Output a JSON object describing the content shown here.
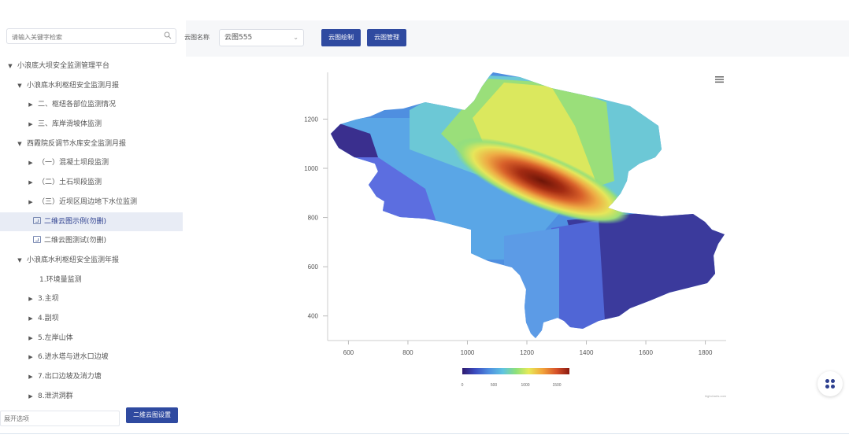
{
  "sidebar": {
    "search_placeholder": "请输入关键字检索",
    "tree": [
      {
        "label": "小浪底大坝安全监测管理平台",
        "indent": 0,
        "type": "open"
      },
      {
        "label": "小浪底水利枢纽安全监测月报",
        "indent": 1,
        "type": "open"
      },
      {
        "label": "二、枢纽各部位监测情况",
        "indent": 2,
        "type": "closed"
      },
      {
        "label": "三、库岸滑坡体监测",
        "indent": 2,
        "type": "closed"
      },
      {
        "label": "西霞院反调节水库安全监测月报",
        "indent": 1,
        "type": "open"
      },
      {
        "label": "（一）混凝土坝段监测",
        "indent": 2,
        "type": "closed"
      },
      {
        "label": "（二）土石坝段监测",
        "indent": 2,
        "type": "closed"
      },
      {
        "label": "（三）近坝区周边地下水位监测",
        "indent": 2,
        "type": "closed"
      },
      {
        "label": "二维云图示例(勿删)",
        "indent": 2,
        "type": "doc",
        "selected": true
      },
      {
        "label": "二维云图测试(勿删)",
        "indent": 2,
        "type": "doc"
      },
      {
        "label": "小浪底水利枢纽安全监测年报",
        "indent": 1,
        "type": "open"
      },
      {
        "label": "1.环境量监测",
        "indent": 2,
        "type": "leaf"
      },
      {
        "label": "3.主坝",
        "indent": 2,
        "type": "closed"
      },
      {
        "label": "4.副坝",
        "indent": 2,
        "type": "closed"
      },
      {
        "label": "5.左岸山体",
        "indent": 2,
        "type": "closed"
      },
      {
        "label": "6.进水塔与进水口边坡",
        "indent": 2,
        "type": "closed"
      },
      {
        "label": "7.出口边坡及消力塘",
        "indent": 2,
        "type": "closed"
      },
      {
        "label": "8.泄洪洞群",
        "indent": 2,
        "type": "closed"
      }
    ],
    "expand_placeholder": "展开选项",
    "settings_button": "二维云图设置"
  },
  "toolbar": {
    "name_label": "云图名称",
    "selected_value": "云图555",
    "draw_button": "云图绘制",
    "manage_button": "云图管理"
  },
  "chart_data": {
    "type": "heatmap",
    "x_ticks": [
      600,
      800,
      1000,
      1200,
      1400,
      1600,
      1800
    ],
    "y_ticks": [
      400,
      600,
      800,
      1000,
      1200
    ],
    "xlim": [
      530,
      1870
    ],
    "ylim": [
      300,
      1390
    ],
    "colorbar": {
      "ticks": [
        0,
        500,
        1000,
        1500
      ],
      "range": [
        0,
        1700
      ],
      "colors": [
        "#2f1a6e",
        "#3b4cc0",
        "#4f8fe0",
        "#5fc4e0",
        "#8de07a",
        "#e7ea58",
        "#f2a33a",
        "#d6512a",
        "#8b1a10"
      ]
    },
    "credit": "highcharts.com",
    "peak": {
      "x": 1250,
      "y": 920,
      "value": 1700
    },
    "menu_icon": "hamburger-menu-icon"
  },
  "fab_icon": "grid-dots-icon"
}
